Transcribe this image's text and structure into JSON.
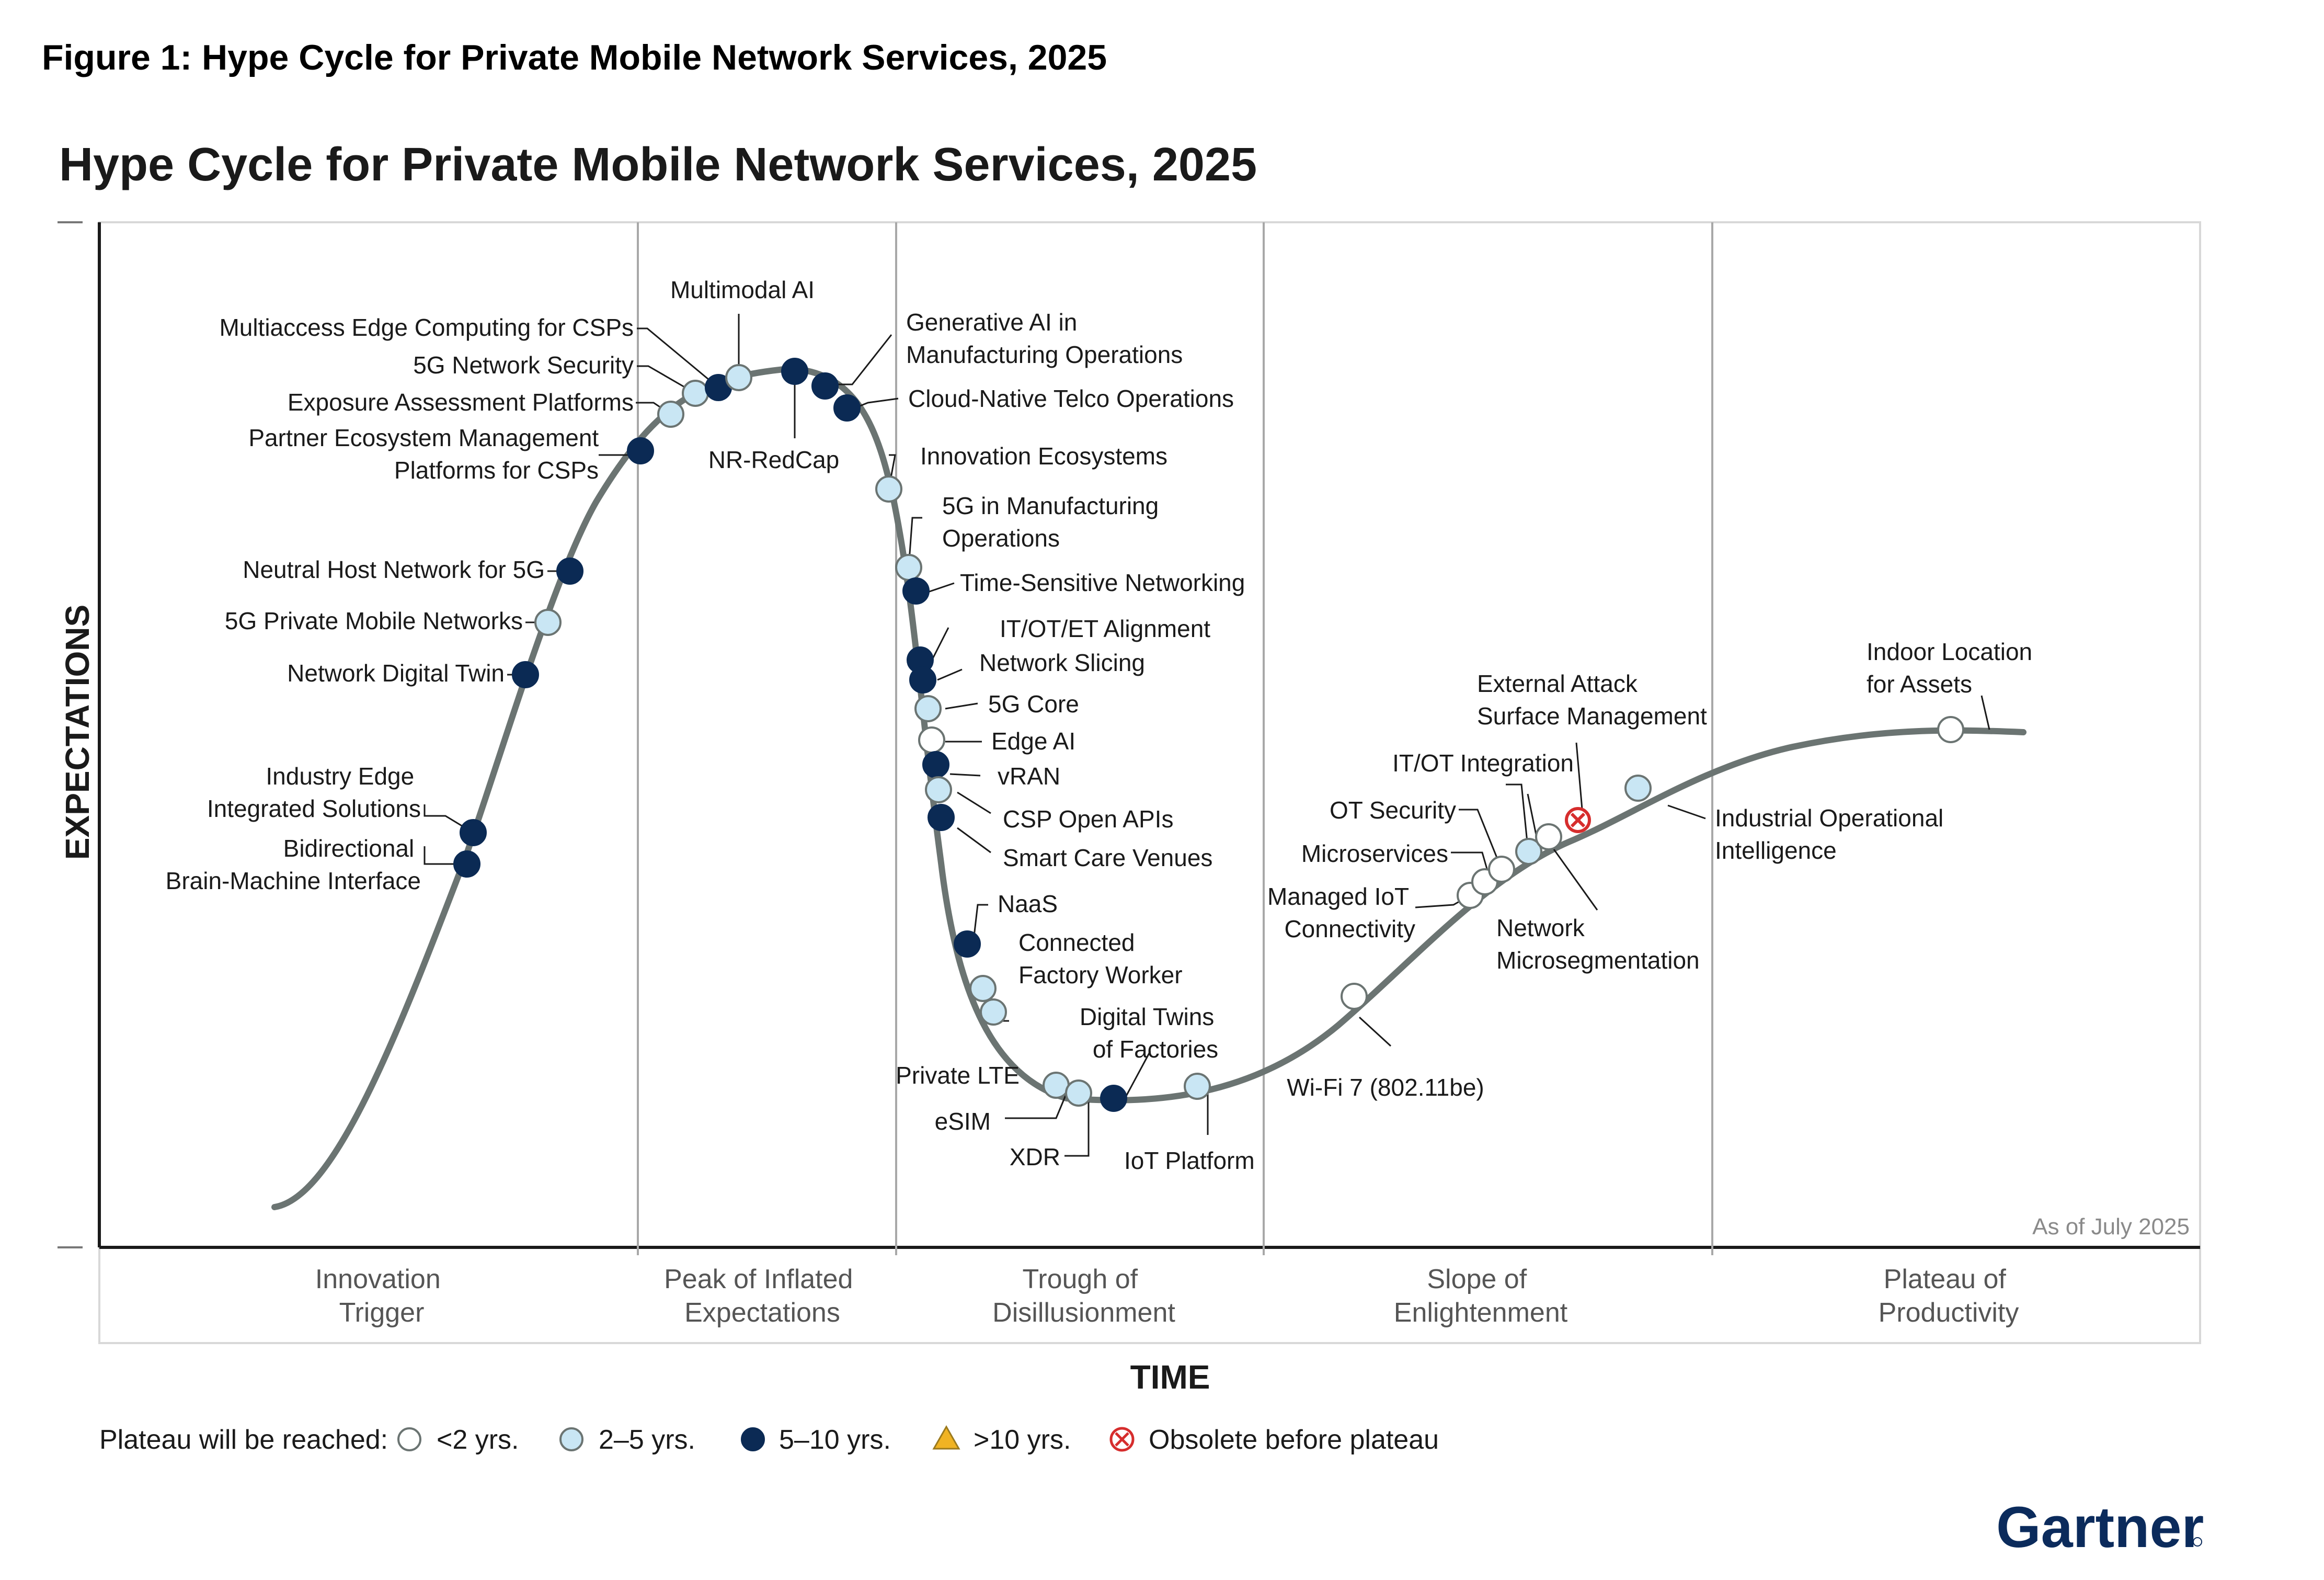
{
  "figure_caption": "Figure 1: Hype Cycle for Private Mobile Network Services, 2025",
  "brand": "Gartner",
  "as_of": "As of July 2025",
  "colors": {
    "lt2": "#ffffff",
    "y2to5": "#c9e6f4",
    "y5to10": "#0b2a54",
    "gt10": "#f0b323",
    "obsolete": "#d62d2d",
    "curve": "#6b7472"
  },
  "legend": {
    "title": "Plateau will be reached:",
    "items": [
      {
        "key": "lt2",
        "label": "<2 yrs.",
        "icon": "open-circle"
      },
      {
        "key": "y2to5",
        "label": "2–5 yrs.",
        "icon": "light-blue-circle"
      },
      {
        "key": "y5to10",
        "label": "5–10 yrs.",
        "icon": "dark-navy-circle"
      },
      {
        "key": "gt10",
        "label": ">10 yrs.",
        "icon": "yellow-triangle"
      },
      {
        "key": "obsolete",
        "label": "Obsolete before plateau",
        "icon": "red-x-circle"
      }
    ]
  },
  "chart_data": {
    "type": "scatter",
    "title": "Hype Cycle for Private Mobile Network Services, 2025",
    "xlabel": "TIME",
    "ylabel": "EXPECTATIONS",
    "grid": false,
    "legend_placement": "bottom",
    "phases": [
      "Innovation Trigger",
      "Peak of Inflated Expectations",
      "Trough of Disillusionment",
      "Slope of Enlightenment",
      "Plateau of Productivity"
    ],
    "technologies": [
      {
        "name": "Bidirectional Brain-Machine Interface",
        "phase": "Innovation Trigger",
        "plateau": "y5to10"
      },
      {
        "name": "Industry Edge Integrated Solutions",
        "phase": "Innovation Trigger",
        "plateau": "y5to10"
      },
      {
        "name": "Network Digital Twin",
        "phase": "Innovation Trigger",
        "plateau": "y5to10"
      },
      {
        "name": "5G Private Mobile Networks",
        "phase": "Innovation Trigger",
        "plateau": "y2to5"
      },
      {
        "name": "Neutral Host Network for 5G",
        "phase": "Innovation Trigger",
        "plateau": "y5to10"
      },
      {
        "name": "Partner Ecosystem Management Platforms for CSPs",
        "phase": "Peak of Inflated Expectations",
        "plateau": "y5to10"
      },
      {
        "name": "Exposure Assessment Platforms",
        "phase": "Peak of Inflated Expectations",
        "plateau": "y2to5"
      },
      {
        "name": "5G Network Security",
        "phase": "Peak of Inflated Expectations",
        "plateau": "y2to5"
      },
      {
        "name": "Multiaccess Edge Computing for CSPs",
        "phase": "Peak of Inflated Expectations",
        "plateau": "y5to10"
      },
      {
        "name": "Multimodal AI",
        "phase": "Peak of Inflated Expectations",
        "plateau": "y2to5"
      },
      {
        "name": "NR-RedCap",
        "phase": "Peak of Inflated Expectations",
        "plateau": "y5to10"
      },
      {
        "name": "Generative AI in Manufacturing Operations",
        "phase": "Peak of Inflated Expectations",
        "plateau": "y5to10"
      },
      {
        "name": "Cloud-Native Telco Operations",
        "phase": "Peak of Inflated Expectations",
        "plateau": "y5to10"
      },
      {
        "name": "Innovation Ecosystems",
        "phase": "Trough of Disillusionment",
        "plateau": "y2to5"
      },
      {
        "name": "5G in Manufacturing Operations",
        "phase": "Trough of Disillusionment",
        "plateau": "y2to5"
      },
      {
        "name": "Time-Sensitive Networking",
        "phase": "Trough of Disillusionment",
        "plateau": "y5to10"
      },
      {
        "name": "IT/OT/ET Alignment",
        "phase": "Trough of Disillusionment",
        "plateau": "y5to10"
      },
      {
        "name": "Network Slicing",
        "phase": "Trough of Disillusionment",
        "plateau": "y5to10"
      },
      {
        "name": "5G Core",
        "phase": "Trough of Disillusionment",
        "plateau": "y2to5"
      },
      {
        "name": "Edge AI",
        "phase": "Trough of Disillusionment",
        "plateau": "lt2"
      },
      {
        "name": "vRAN",
        "phase": "Trough of Disillusionment",
        "plateau": "y5to10"
      },
      {
        "name": "CSP Open APIs",
        "phase": "Trough of Disillusionment",
        "plateau": "y2to5"
      },
      {
        "name": "Smart Care Venues",
        "phase": "Trough of Disillusionment",
        "plateau": "y5to10"
      },
      {
        "name": "NaaS",
        "phase": "Trough of Disillusionment",
        "plateau": "y5to10"
      },
      {
        "name": "Connected Factory Worker",
        "phase": "Trough of Disillusionment",
        "plateau": "y2to5"
      },
      {
        "name": "Private LTE",
        "phase": "Trough of Disillusionment",
        "plateau": "y2to5"
      },
      {
        "name": "eSIM",
        "phase": "Trough of Disillusionment",
        "plateau": "y2to5"
      },
      {
        "name": "XDR",
        "phase": "Trough of Disillusionment",
        "plateau": "y2to5"
      },
      {
        "name": "Digital Twins of Factories",
        "phase": "Trough of Disillusionment",
        "plateau": "y5to10"
      },
      {
        "name": "IoT Platform",
        "phase": "Trough of Disillusionment",
        "plateau": "y2to5"
      },
      {
        "name": "Wi-Fi 7 (802.11be)",
        "phase": "Slope of Enlightenment",
        "plateau": "lt2"
      },
      {
        "name": "Managed IoT Connectivity",
        "phase": "Slope of Enlightenment",
        "plateau": "lt2"
      },
      {
        "name": "Microservices",
        "phase": "Slope of Enlightenment",
        "plateau": "lt2"
      },
      {
        "name": "OT Security",
        "phase": "Slope of Enlightenment",
        "plateau": "lt2"
      },
      {
        "name": "IT/OT Integration",
        "phase": "Slope of Enlightenment",
        "plateau": "y2to5"
      },
      {
        "name": "Network Microsegmentation",
        "phase": "Slope of Enlightenment",
        "plateau": "lt2"
      },
      {
        "name": "External Attack Surface Management",
        "phase": "Slope of Enlightenment",
        "plateau": "obsolete"
      },
      {
        "name": "Industrial Operational Intelligence",
        "phase": "Slope of Enlightenment",
        "plateau": "y2to5"
      },
      {
        "name": "Indoor Location for Assets",
        "phase": "Plateau of Productivity",
        "plateau": "lt2"
      }
    ]
  }
}
